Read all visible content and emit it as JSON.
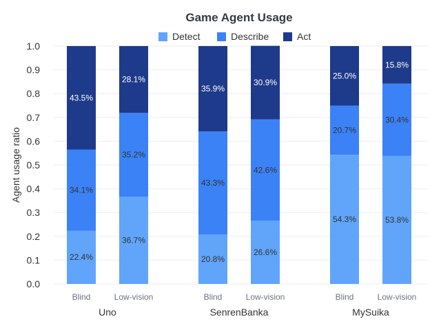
{
  "chart_data": {
    "type": "bar",
    "stacked": true,
    "title": "Game Agent Usage",
    "ylabel": "Agent usage ratio",
    "xlabel": "",
    "ylim": [
      0,
      1
    ],
    "yticks": [
      "0.0",
      "0.1",
      "0.2",
      "0.3",
      "0.4",
      "0.5",
      "0.6",
      "0.7",
      "0.8",
      "0.9",
      "1.0"
    ],
    "legend_position": "top-center",
    "grid": true,
    "groups": [
      "Uno",
      "SenrenBanka",
      "MySuika"
    ],
    "conditions": [
      "Blind",
      "Low-vision"
    ],
    "series": [
      {
        "name": "Detect",
        "color": "#60a5fa",
        "label_color": "#333333",
        "values": [
          [
            0.224,
            0.367
          ],
          [
            0.208,
            0.266
          ],
          [
            0.543,
            0.538
          ]
        ],
        "labels": [
          [
            "22.4%",
            "36.7%"
          ],
          [
            "20.8%",
            "26.6%"
          ],
          [
            "54.3%",
            "53.8%"
          ]
        ]
      },
      {
        "name": "Describe",
        "color": "#3b82f6",
        "label_color": "#333333",
        "values": [
          [
            0.341,
            0.352
          ],
          [
            0.433,
            0.426
          ],
          [
            0.207,
            0.304
          ]
        ],
        "labels": [
          [
            "34.1%",
            "35.2%"
          ],
          [
            "43.3%",
            "42.6%"
          ],
          [
            "20.7%",
            "30.4%"
          ]
        ]
      },
      {
        "name": "Act",
        "color": "#1e3a8a",
        "label_color": "#ffffff",
        "values": [
          [
            0.435,
            0.281
          ],
          [
            0.359,
            0.309
          ],
          [
            0.25,
            0.158
          ]
        ],
        "labels": [
          [
            "43.5%",
            "28.1%"
          ],
          [
            "35.9%",
            "30.9%"
          ],
          [
            "25.0%",
            "15.8%"
          ]
        ]
      }
    ]
  }
}
